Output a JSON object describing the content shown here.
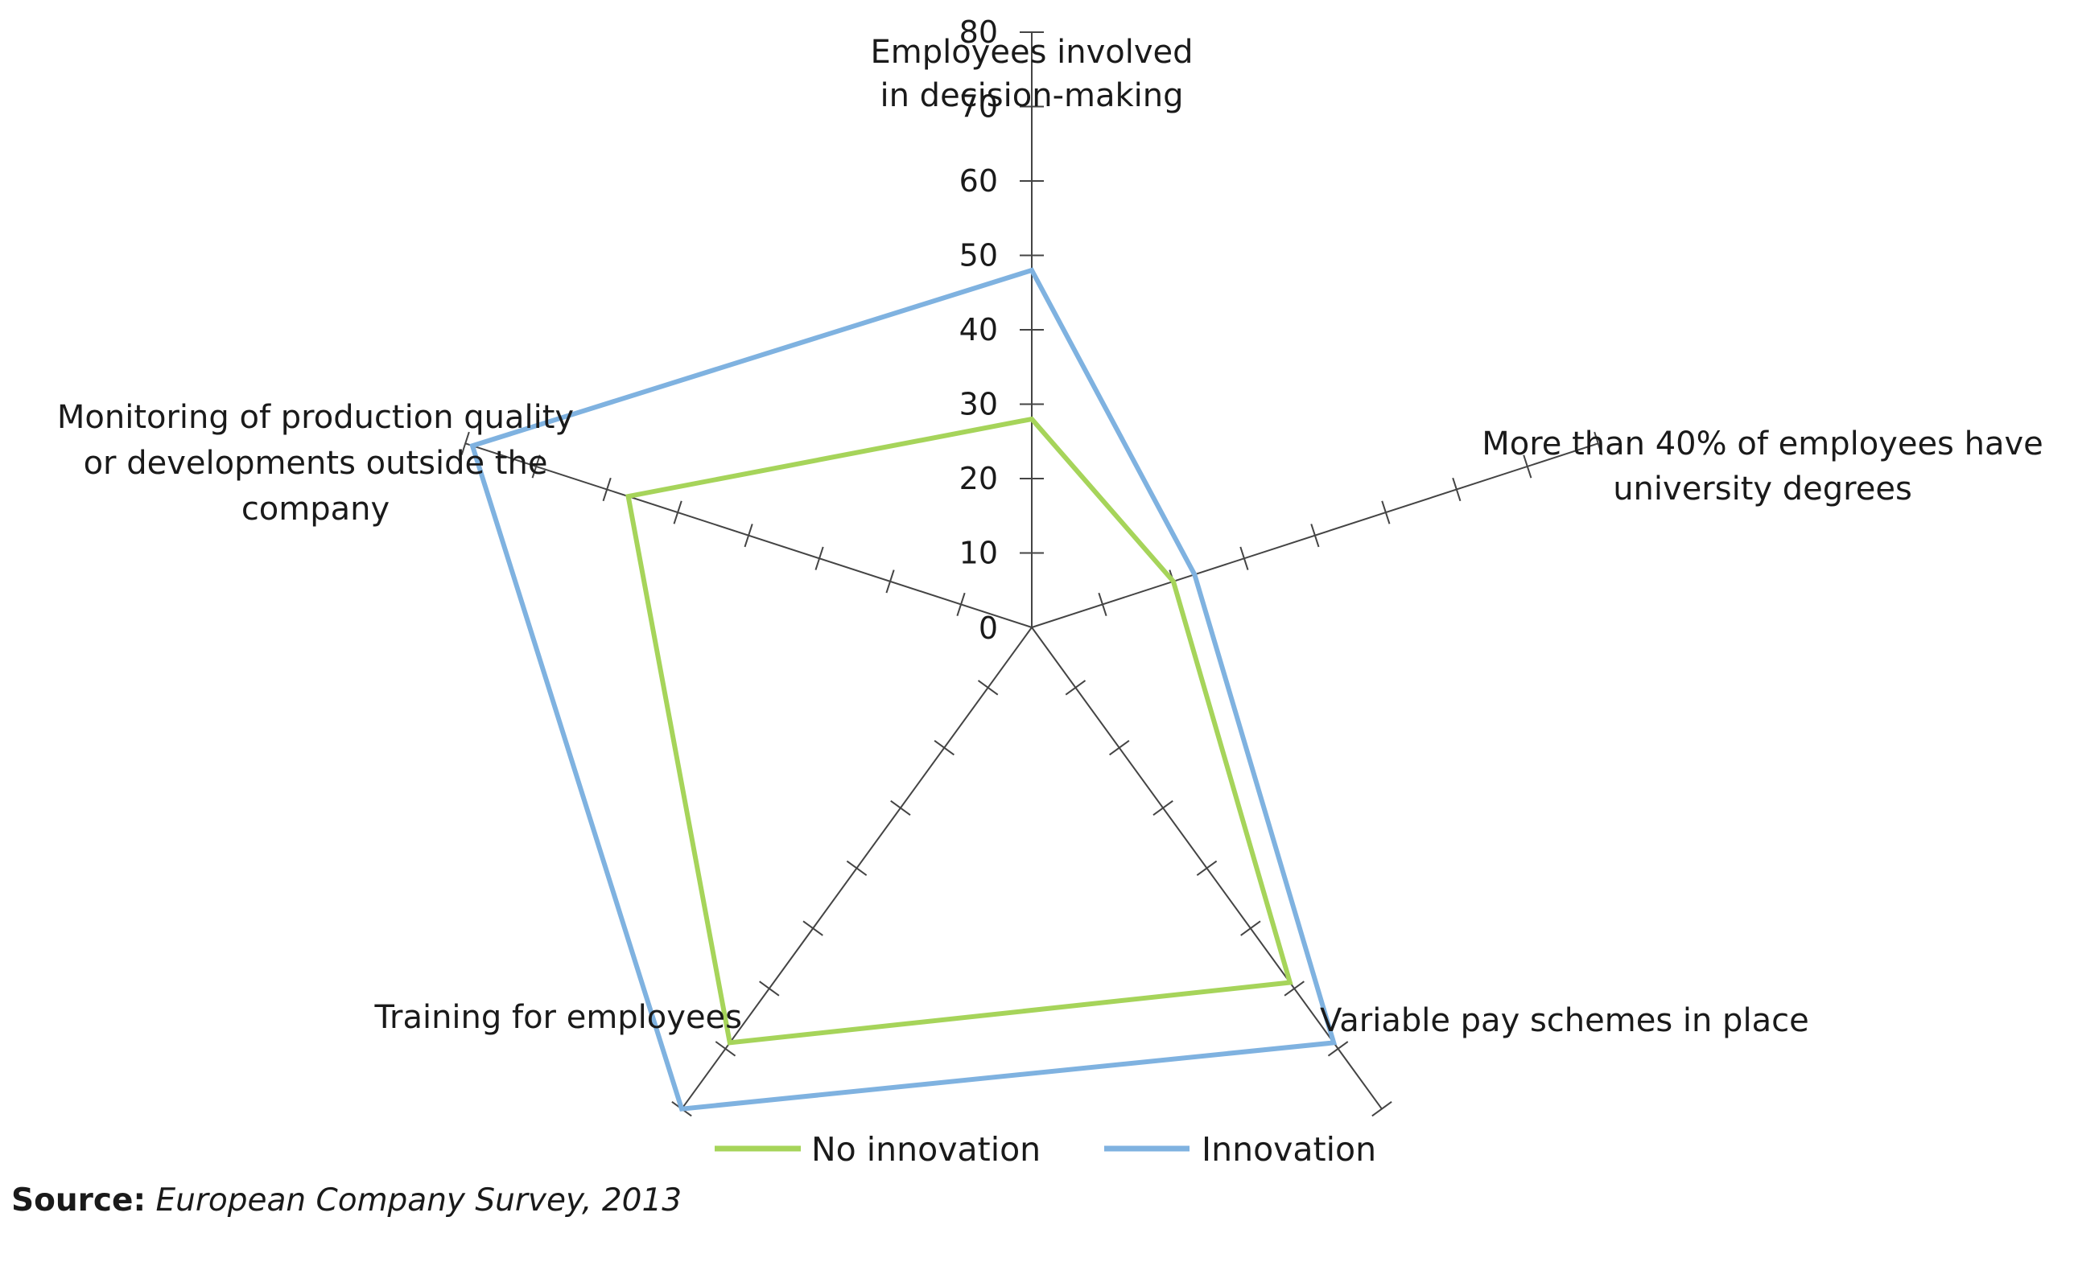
{
  "chart_data": {
    "type": "radar",
    "axes": [
      {
        "label_lines": [
          "Employees involved",
          "in decision-making"
        ]
      },
      {
        "label_lines": [
          "More than 40% of employees have",
          "university degrees"
        ]
      },
      {
        "label_lines": [
          "Variable pay schemes in place"
        ]
      },
      {
        "label_lines": [
          "Training for employees"
        ]
      },
      {
        "label_lines": [
          "Monitoring of production quality",
          "or developments outside the",
          "company"
        ]
      }
    ],
    "ticks": [
      "0",
      "10",
      "20",
      "30",
      "40",
      "50",
      "60",
      "70",
      "80"
    ],
    "range": [
      0,
      80
    ],
    "series": [
      {
        "name": "No innovation",
        "color": "#a6d45a",
        "values": [
          28,
          20,
          59,
          69,
          57
        ]
      },
      {
        "name": "Innovation",
        "color": "#7fb2e0",
        "values": [
          48,
          23,
          69,
          80,
          79
        ]
      }
    ],
    "legend_position": "bottom",
    "grid": false
  },
  "source": {
    "label": "Source:",
    "text": "European Company Survey, 2013"
  }
}
